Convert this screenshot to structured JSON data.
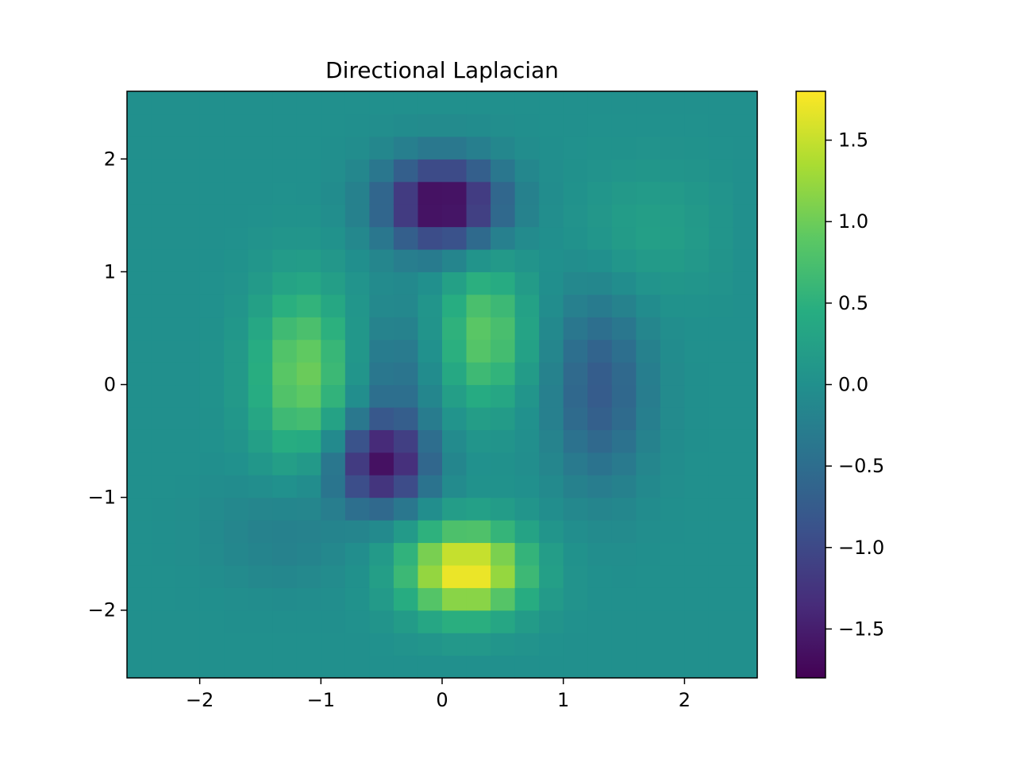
{
  "chart_data": {
    "type": "heatmap",
    "title": "Directional Laplacian",
    "xlabel": "",
    "ylabel": "",
    "xlim": [
      -2.6,
      2.6
    ],
    "ylim": [
      -2.6,
      2.6
    ],
    "grid": false,
    "x_ticks": [
      -2,
      -1,
      0,
      1,
      2
    ],
    "x_tick_labels": [
      "−2",
      "−1",
      "0",
      "1",
      "2"
    ],
    "y_ticks": [
      -2,
      -1,
      0,
      1,
      2
    ],
    "y_tick_labels": [
      "−2",
      "−1",
      "0",
      "1",
      "2"
    ],
    "colormap": "viridis",
    "color_range": [
      -1.8,
      1.8
    ],
    "colorbar": {
      "ticks": [
        -1.5,
        -1.0,
        -0.5,
        0.0,
        0.5,
        1.0,
        1.5
      ],
      "tick_labels": [
        "−1.5",
        "−1.0",
        "−0.5",
        "0.0",
        "0.5",
        "1.0",
        "1.5"
      ]
    },
    "grid_size": 26,
    "cell_extent": 0.2,
    "colors": {
      "frame": "#000000",
      "background": "#ffffff"
    }
  }
}
